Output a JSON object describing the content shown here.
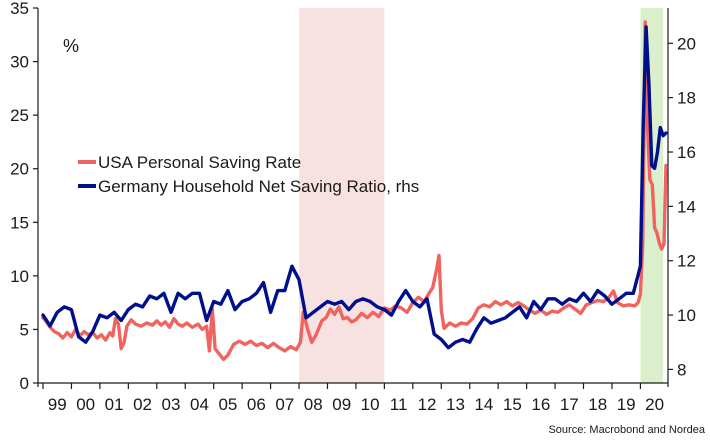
{
  "chart_data": {
    "type": "line",
    "unit_label": "%",
    "source": "Source: Macrobond and Nordea",
    "x_tick_labels": [
      "99",
      "00",
      "01",
      "02",
      "03",
      "04",
      "05",
      "06",
      "07",
      "08",
      "09",
      "10",
      "11",
      "12",
      "13",
      "14",
      "15",
      "16",
      "17",
      "18",
      "19",
      "20"
    ],
    "x_range": [
      1999.0,
      2020.9
    ],
    "y_left": {
      "range": [
        0,
        35
      ],
      "ticks": [
        0,
        5,
        10,
        15,
        20,
        25,
        30,
        35
      ]
    },
    "y_right": {
      "range": [
        7.5,
        21.3
      ],
      "ticks": [
        8,
        10,
        12,
        14,
        16,
        18,
        20
      ]
    },
    "shaded_periods": [
      {
        "start": 2008.0,
        "end": 2011.0,
        "color": "#f8e1e1"
      },
      {
        "start": 2020.0,
        "end": 2020.8,
        "color": "#dcefcc"
      }
    ],
    "series": [
      {
        "name": "USA Personal Saving Rate",
        "axis": "left",
        "color": "#f0645f",
        "points": [
          [
            1999.0,
            6.1
          ],
          [
            1999.1,
            5.8
          ],
          [
            1999.25,
            5.2
          ],
          [
            1999.4,
            4.8
          ],
          [
            1999.55,
            4.6
          ],
          [
            1999.7,
            4.2
          ],
          [
            1999.85,
            4.7
          ],
          [
            2000.0,
            4.3
          ],
          [
            2000.15,
            5.0
          ],
          [
            2000.3,
            4.4
          ],
          [
            2000.45,
            4.8
          ],
          [
            2000.6,
            4.5
          ],
          [
            2000.75,
            4.7
          ],
          [
            2000.9,
            4.2
          ],
          [
            2001.05,
            4.5
          ],
          [
            2001.2,
            4.0
          ],
          [
            2001.35,
            4.7
          ],
          [
            2001.45,
            4.4
          ],
          [
            2001.55,
            6.0
          ],
          [
            2001.65,
            5.5
          ],
          [
            2001.75,
            3.2
          ],
          [
            2001.85,
            3.8
          ],
          [
            2001.95,
            5.3
          ],
          [
            2002.1,
            5.9
          ],
          [
            2002.25,
            5.5
          ],
          [
            2002.45,
            5.3
          ],
          [
            2002.65,
            5.6
          ],
          [
            2002.85,
            5.4
          ],
          [
            2003.0,
            5.8
          ],
          [
            2003.15,
            5.4
          ],
          [
            2003.3,
            5.7
          ],
          [
            2003.45,
            5.2
          ],
          [
            2003.6,
            6.0
          ],
          [
            2003.75,
            5.5
          ],
          [
            2003.9,
            5.3
          ],
          [
            2004.05,
            5.6
          ],
          [
            2004.25,
            5.2
          ],
          [
            2004.45,
            5.5
          ],
          [
            2004.6,
            5.0
          ],
          [
            2004.75,
            5.3
          ],
          [
            2004.85,
            3.0
          ],
          [
            2004.95,
            6.9
          ],
          [
            2005.05,
            3.2
          ],
          [
            2005.2,
            2.7
          ],
          [
            2005.35,
            2.2
          ],
          [
            2005.5,
            2.6
          ],
          [
            2005.7,
            3.6
          ],
          [
            2005.9,
            3.9
          ],
          [
            2006.1,
            3.6
          ],
          [
            2006.3,
            3.9
          ],
          [
            2006.5,
            3.5
          ],
          [
            2006.7,
            3.7
          ],
          [
            2006.9,
            3.3
          ],
          [
            2007.1,
            3.7
          ],
          [
            2007.3,
            3.3
          ],
          [
            2007.5,
            3.0
          ],
          [
            2007.7,
            3.4
          ],
          [
            2007.9,
            3.1
          ],
          [
            2008.05,
            3.8
          ],
          [
            2008.15,
            6.6
          ],
          [
            2008.3,
            5.0
          ],
          [
            2008.45,
            3.8
          ],
          [
            2008.6,
            4.5
          ],
          [
            2008.8,
            5.8
          ],
          [
            2008.95,
            6.1
          ],
          [
            2009.1,
            6.9
          ],
          [
            2009.25,
            6.4
          ],
          [
            2009.4,
            7.1
          ],
          [
            2009.55,
            6.0
          ],
          [
            2009.7,
            6.1
          ],
          [
            2009.85,
            5.7
          ],
          [
            2010.0,
            5.9
          ],
          [
            2010.2,
            6.5
          ],
          [
            2010.4,
            6.1
          ],
          [
            2010.6,
            6.6
          ],
          [
            2010.8,
            6.2
          ],
          [
            2011.0,
            7.0
          ],
          [
            2011.2,
            6.8
          ],
          [
            2011.4,
            7.2
          ],
          [
            2011.6,
            7.0
          ],
          [
            2011.8,
            6.6
          ],
          [
            2012.0,
            7.5
          ],
          [
            2012.2,
            8.0
          ],
          [
            2012.4,
            7.6
          ],
          [
            2012.55,
            8.3
          ],
          [
            2012.7,
            8.9
          ],
          [
            2012.85,
            10.8
          ],
          [
            2012.92,
            11.9
          ],
          [
            2013.0,
            6.8
          ],
          [
            2013.1,
            5.1
          ],
          [
            2013.3,
            5.6
          ],
          [
            2013.5,
            5.3
          ],
          [
            2013.7,
            5.6
          ],
          [
            2013.9,
            5.5
          ],
          [
            2014.1,
            6.0
          ],
          [
            2014.3,
            7.0
          ],
          [
            2014.5,
            7.3
          ],
          [
            2014.7,
            7.1
          ],
          [
            2014.9,
            7.6
          ],
          [
            2015.1,
            7.3
          ],
          [
            2015.3,
            7.6
          ],
          [
            2015.5,
            7.2
          ],
          [
            2015.7,
            7.5
          ],
          [
            2015.9,
            7.2
          ],
          [
            2016.1,
            6.8
          ],
          [
            2016.3,
            6.5
          ],
          [
            2016.5,
            6.8
          ],
          [
            2016.7,
            6.4
          ],
          [
            2016.9,
            6.7
          ],
          [
            2017.1,
            6.6
          ],
          [
            2017.3,
            7.0
          ],
          [
            2017.5,
            7.3
          ],
          [
            2017.7,
            6.9
          ],
          [
            2017.9,
            6.5
          ],
          [
            2018.1,
            7.3
          ],
          [
            2018.3,
            7.5
          ],
          [
            2018.5,
            7.7
          ],
          [
            2018.7,
            7.6
          ],
          [
            2018.9,
            8.0
          ],
          [
            2019.05,
            8.6
          ],
          [
            2019.2,
            7.5
          ],
          [
            2019.4,
            7.2
          ],
          [
            2019.6,
            7.3
          ],
          [
            2019.8,
            7.2
          ],
          [
            2019.92,
            7.5
          ],
          [
            2020.0,
            8.3
          ],
          [
            2020.08,
            12.9
          ],
          [
            2020.17,
            33.7
          ],
          [
            2020.25,
            24.0
          ],
          [
            2020.33,
            19.0
          ],
          [
            2020.42,
            18.5
          ],
          [
            2020.5,
            14.5
          ],
          [
            2020.58,
            14.0
          ],
          [
            2020.67,
            13.0
          ],
          [
            2020.75,
            12.5
          ],
          [
            2020.83,
            13.0
          ],
          [
            2020.9,
            20.3
          ]
        ]
      },
      {
        "name": "Germany Household Net Saving Ratio, rhs",
        "axis": "right",
        "color": "#000f8c",
        "points": [
          [
            1999.0,
            10.0
          ],
          [
            1999.25,
            9.6
          ],
          [
            1999.5,
            10.1
          ],
          [
            1999.75,
            10.3
          ],
          [
            2000.0,
            10.2
          ],
          [
            2000.25,
            9.2
          ],
          [
            2000.5,
            9.0
          ],
          [
            2000.75,
            9.4
          ],
          [
            2001.0,
            10.0
          ],
          [
            2001.25,
            9.9
          ],
          [
            2001.5,
            10.1
          ],
          [
            2001.75,
            9.8
          ],
          [
            2002.0,
            10.2
          ],
          [
            2002.25,
            10.4
          ],
          [
            2002.5,
            10.3
          ],
          [
            2002.75,
            10.7
          ],
          [
            2003.0,
            10.6
          ],
          [
            2003.25,
            10.8
          ],
          [
            2003.5,
            10.1
          ],
          [
            2003.75,
            10.8
          ],
          [
            2004.0,
            10.6
          ],
          [
            2004.25,
            10.8
          ],
          [
            2004.5,
            10.8
          ],
          [
            2004.75,
            9.8
          ],
          [
            2005.0,
            10.5
          ],
          [
            2005.25,
            10.4
          ],
          [
            2005.5,
            10.9
          ],
          [
            2005.75,
            10.2
          ],
          [
            2006.0,
            10.5
          ],
          [
            2006.25,
            10.6
          ],
          [
            2006.5,
            10.8
          ],
          [
            2006.75,
            11.2
          ],
          [
            2007.0,
            10.1
          ],
          [
            2007.25,
            10.9
          ],
          [
            2007.5,
            10.9
          ],
          [
            2007.75,
            11.8
          ],
          [
            2008.0,
            11.3
          ],
          [
            2008.25,
            9.9
          ],
          [
            2008.5,
            10.1
          ],
          [
            2008.75,
            10.3
          ],
          [
            2009.0,
            10.5
          ],
          [
            2009.25,
            10.4
          ],
          [
            2009.5,
            10.5
          ],
          [
            2009.75,
            10.2
          ],
          [
            2010.0,
            10.5
          ],
          [
            2010.25,
            10.6
          ],
          [
            2010.5,
            10.5
          ],
          [
            2010.75,
            10.3
          ],
          [
            2011.0,
            10.2
          ],
          [
            2011.25,
            10.0
          ],
          [
            2011.5,
            10.5
          ],
          [
            2011.75,
            10.9
          ],
          [
            2012.0,
            10.5
          ],
          [
            2012.25,
            10.3
          ],
          [
            2012.5,
            10.6
          ],
          [
            2012.75,
            9.3
          ],
          [
            2013.0,
            9.1
          ],
          [
            2013.25,
            8.8
          ],
          [
            2013.5,
            9.0
          ],
          [
            2013.75,
            9.1
          ],
          [
            2014.0,
            9.0
          ],
          [
            2014.25,
            9.5
          ],
          [
            2014.5,
            9.9
          ],
          [
            2014.75,
            9.7
          ],
          [
            2015.0,
            9.8
          ],
          [
            2015.25,
            9.9
          ],
          [
            2015.5,
            10.1
          ],
          [
            2015.75,
            10.3
          ],
          [
            2016.0,
            9.9
          ],
          [
            2016.25,
            10.5
          ],
          [
            2016.5,
            10.2
          ],
          [
            2016.75,
            10.6
          ],
          [
            2017.0,
            10.6
          ],
          [
            2017.25,
            10.4
          ],
          [
            2017.5,
            10.6
          ],
          [
            2017.75,
            10.5
          ],
          [
            2018.0,
            10.8
          ],
          [
            2018.25,
            10.5
          ],
          [
            2018.5,
            10.9
          ],
          [
            2018.75,
            10.7
          ],
          [
            2019.0,
            10.4
          ],
          [
            2019.25,
            10.6
          ],
          [
            2019.5,
            10.8
          ],
          [
            2019.75,
            10.8
          ],
          [
            2020.0,
            11.8
          ],
          [
            2020.1,
            17.0
          ],
          [
            2020.2,
            20.6
          ],
          [
            2020.3,
            18.5
          ],
          [
            2020.4,
            15.5
          ],
          [
            2020.5,
            15.4
          ],
          [
            2020.6,
            16.0
          ],
          [
            2020.7,
            16.9
          ],
          [
            2020.8,
            16.6
          ],
          [
            2020.9,
            16.7
          ]
        ]
      }
    ]
  }
}
